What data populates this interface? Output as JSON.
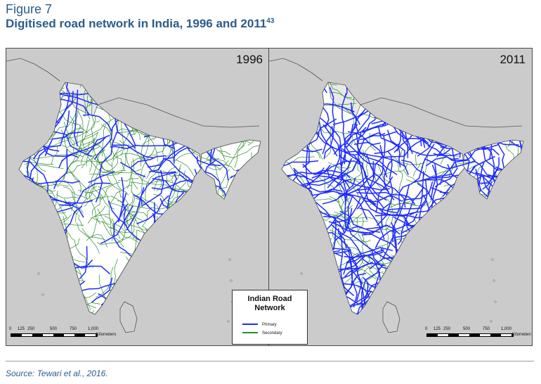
{
  "figure": {
    "label": "Figure 7",
    "title": "Digitised road network in India, 1996 and 2011",
    "title_ref": "43",
    "source": "Source: Tewari et al., 2016."
  },
  "maps": [
    {
      "year": "1996",
      "primary_density": "sparse",
      "secondary_density": "dense"
    },
    {
      "year": "2011",
      "primary_density": "dense",
      "secondary_density": "moderate"
    }
  ],
  "scale": {
    "left_ticks": [
      "0",
      "125",
      "250",
      "500",
      "750",
      "1,000"
    ],
    "right_ticks": [
      "0",
      "125",
      "250",
      "500",
      "750",
      "1,000"
    ],
    "unit": "Kilometers"
  },
  "legend": {
    "title_line1": "Indian Road",
    "title_line2": "Network",
    "items": [
      {
        "label": "Primary",
        "color": "#1f2bff"
      },
      {
        "label": "Secondary",
        "color": "#2e8b2e"
      }
    ]
  },
  "colors": {
    "heading": "#2b5c8a",
    "land_other": "#cbcbcb",
    "india": "#ffffff",
    "disputed": "#e8e8e8"
  }
}
